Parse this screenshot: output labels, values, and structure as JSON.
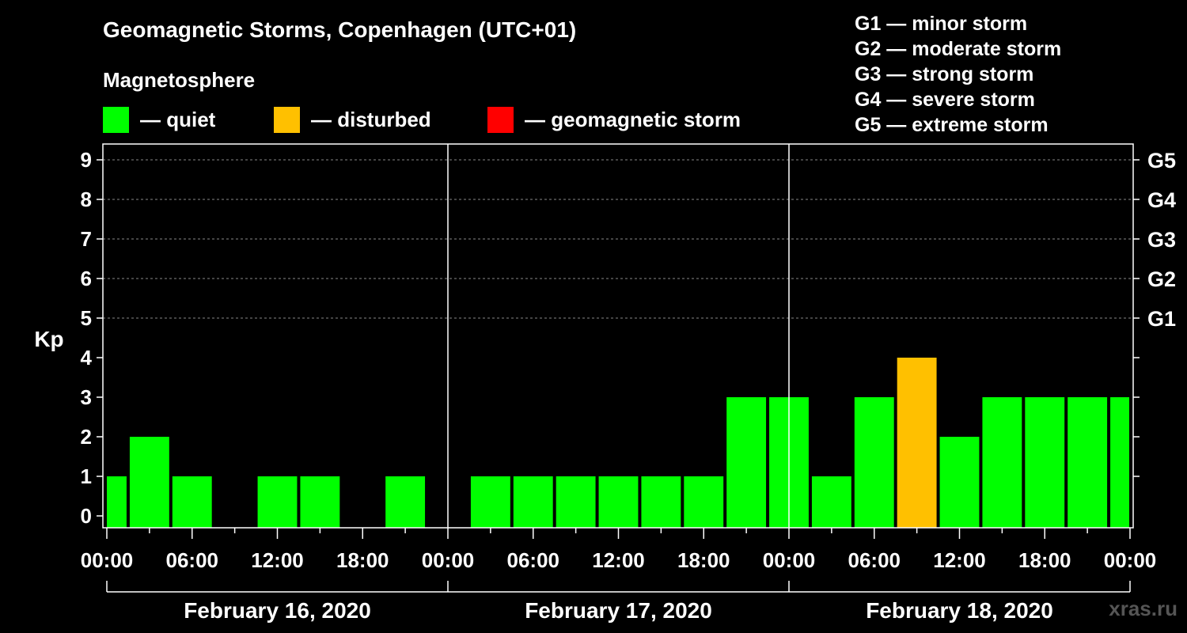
{
  "header": {
    "title": "Geomagnetic Storms, Copenhagen (UTC+01)",
    "subtitle": "Magnetosphere"
  },
  "legend": [
    {
      "label": "— quiet",
      "color": "#00ff00"
    },
    {
      "label": "— disturbed",
      "color": "#ffc000"
    },
    {
      "label": "— geomagnetic storm",
      "color": "#ff0000"
    }
  ],
  "storm_scale": [
    "G1 — minor storm",
    "G2 — moderate storm",
    "G3 — strong storm",
    "G4 — severe storm",
    "G5 — extreme storm"
  ],
  "watermark": "xras.ru",
  "chart_data": {
    "type": "bar",
    "ylabel": "Kp",
    "ylim": [
      0,
      9
    ],
    "y_ticks": [
      "0",
      "1",
      "2",
      "3",
      "4",
      "5",
      "6",
      "7",
      "8",
      "9"
    ],
    "right_ticks": [
      {
        "kp": 5,
        "label": "G1"
      },
      {
        "kp": 6,
        "label": "G2"
      },
      {
        "kp": 7,
        "label": "G3"
      },
      {
        "kp": 8,
        "label": "G4"
      },
      {
        "kp": 9,
        "label": "G5"
      }
    ],
    "x_tick_labels": [
      "00:00",
      "06:00",
      "12:00",
      "18:00",
      "00:00",
      "06:00",
      "12:00",
      "18:00",
      "00:00",
      "06:00",
      "12:00",
      "18:00",
      "00:00"
    ],
    "days": [
      "February 16, 2020",
      "February 17, 2020",
      "February 18, 2020"
    ],
    "interval_hours": 3,
    "values": [
      1,
      2,
      1,
      0,
      1,
      1,
      0,
      1,
      0,
      1,
      1,
      1,
      1,
      1,
      1,
      3,
      3,
      1,
      3,
      4,
      2,
      3,
      3,
      3,
      3
    ],
    "colors": {
      "quiet": "#00ff00",
      "disturbed": "#ffc000",
      "storm": "#ff0000"
    },
    "grid": true
  }
}
